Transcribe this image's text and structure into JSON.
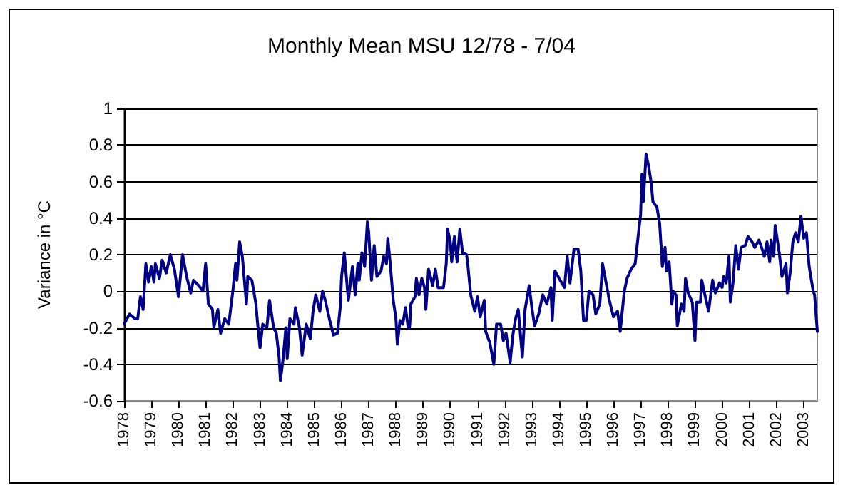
{
  "chart_data": {
    "type": "line",
    "title": "Monthly Mean MSU 12/78 - 7/04",
    "ylabel": "Variance in °C",
    "xlim": [
      1978,
      2003.5
    ],
    "xticks": [
      1978,
      1979,
      1980,
      1981,
      1982,
      1983,
      1984,
      1985,
      1986,
      1987,
      1988,
      1989,
      1990,
      1991,
      1992,
      1993,
      1994,
      1995,
      1996,
      1997,
      1998,
      1999,
      2000,
      2001,
      2002,
      2003
    ],
    "ylim": [
      -0.6,
      1
    ],
    "yticks": [
      -0.6,
      -0.4,
      -0.2,
      0,
      0.2,
      0.4,
      0.6,
      0.8,
      1
    ],
    "grid": "y",
    "marker": "none",
    "line_style": "solid",
    "series": [
      {
        "color": "#000080",
        "x": [
          1978.0,
          1978.2,
          1978.4,
          1978.5,
          1978.6,
          1978.7,
          1978.8,
          1978.9,
          1979.0,
          1979.1,
          1979.15,
          1979.3,
          1979.4,
          1979.55,
          1979.7,
          1979.85,
          1980.0,
          1980.15,
          1980.3,
          1980.45,
          1980.55,
          1980.75,
          1980.9,
          1981.0,
          1981.1,
          1981.25,
          1981.3,
          1981.45,
          1981.55,
          1981.7,
          1981.85,
          1982.0,
          1982.1,
          1982.15,
          1982.25,
          1982.35,
          1982.5,
          1982.55,
          1982.7,
          1982.85,
          1982.9,
          1983.0,
          1983.1,
          1983.25,
          1983.35,
          1983.5,
          1983.6,
          1983.7,
          1983.75,
          1983.85,
          1983.95,
          1984.0,
          1984.1,
          1984.25,
          1984.3,
          1984.45,
          1984.55,
          1984.7,
          1984.85,
          1984.95,
          1985.05,
          1985.2,
          1985.3,
          1985.4,
          1985.55,
          1985.7,
          1985.85,
          1985.95,
          1986.0,
          1986.1,
          1986.25,
          1986.4,
          1986.5,
          1986.6,
          1986.65,
          1986.75,
          1986.85,
          1986.95,
          1987.0,
          1987.1,
          1987.2,
          1987.3,
          1987.45,
          1987.55,
          1987.65,
          1987.7,
          1987.8,
          1987.9,
          1988.0,
          1988.05,
          1988.15,
          1988.25,
          1988.35,
          1988.45,
          1988.5,
          1988.55,
          1988.7,
          1988.75,
          1988.85,
          1988.95,
          1989.05,
          1989.1,
          1989.2,
          1989.35,
          1989.45,
          1989.55,
          1989.75,
          1989.85,
          1989.9,
          1990.0,
          1990.05,
          1990.15,
          1990.25,
          1990.35,
          1990.45,
          1990.6,
          1990.65,
          1990.75,
          1990.9,
          1991.0,
          1991.1,
          1991.25,
          1991.3,
          1991.45,
          1991.6,
          1991.7,
          1991.85,
          1991.95,
          1992.05,
          1992.2,
          1992.3,
          1992.4,
          1992.5,
          1992.65,
          1992.75,
          1992.9,
          1993.0,
          1993.1,
          1993.25,
          1993.4,
          1993.55,
          1993.7,
          1993.75,
          1993.85,
          1994.0,
          1994.2,
          1994.3,
          1994.4,
          1994.55,
          1994.7,
          1994.8,
          1994.9,
          1995.0,
          1995.1,
          1995.25,
          1995.35,
          1995.5,
          1995.6,
          1995.7,
          1995.85,
          1996.0,
          1996.15,
          1996.25,
          1996.4,
          1996.5,
          1996.65,
          1996.8,
          1996.9,
          1997.0,
          1997.05,
          1997.1,
          1997.2,
          1997.3,
          1997.4,
          1997.45,
          1997.6,
          1997.7,
          1997.8,
          1997.9,
          1997.95,
          1998.05,
          1998.15,
          1998.2,
          1998.3,
          1998.35,
          1998.5,
          1998.6,
          1998.65,
          1998.75,
          1998.9,
          1999.0,
          1999.05,
          1999.2,
          1999.25,
          1999.35,
          1999.5,
          1999.65,
          1999.75,
          1999.9,
          2000.0,
          2000.05,
          2000.15,
          2000.25,
          2000.3,
          2000.4,
          2000.5,
          2000.6,
          2000.7,
          2000.85,
          2000.95,
          2001.1,
          2001.2,
          2001.35,
          2001.45,
          2001.55,
          2001.65,
          2001.75,
          2001.8,
          2001.9,
          2001.95,
          2002.1,
          2002.2,
          2002.35,
          2002.4,
          2002.5,
          2002.6,
          2002.7,
          2002.8,
          2002.9,
          2003.0,
          2003.1,
          2003.2,
          2003.35,
          2003.4,
          2003.5
        ],
        "values": [
          -0.18,
          -0.125,
          -0.15,
          -0.15,
          -0.03,
          -0.1,
          0.15,
          0.05,
          0.135,
          0.05,
          0.15,
          0.07,
          0.17,
          0.1,
          0.2,
          0.12,
          -0.03,
          0.2,
          0.08,
          -0.01,
          0.06,
          0.03,
          0.0,
          0.15,
          -0.07,
          -0.1,
          -0.2,
          -0.1,
          -0.23,
          -0.15,
          -0.18,
          0.0,
          0.15,
          0.06,
          0.27,
          0.19,
          -0.07,
          0.08,
          0.06,
          -0.07,
          -0.16,
          -0.31,
          -0.18,
          -0.2,
          -0.05,
          -0.2,
          -0.23,
          -0.36,
          -0.49,
          -0.37,
          -0.2,
          -0.37,
          -0.15,
          -0.18,
          -0.09,
          -0.2,
          -0.35,
          -0.18,
          -0.26,
          -0.11,
          -0.02,
          -0.11,
          0.0,
          -0.05,
          -0.15,
          -0.24,
          -0.23,
          -0.09,
          0.08,
          0.21,
          -0.05,
          0.135,
          -0.02,
          0.15,
          0.06,
          0.21,
          0.135,
          0.38,
          0.32,
          0.06,
          0.25,
          0.08,
          0.11,
          0.19,
          0.15,
          0.29,
          0.135,
          -0.05,
          -0.15,
          -0.29,
          -0.16,
          -0.18,
          -0.09,
          -0.2,
          -0.2,
          -0.07,
          -0.03,
          0.07,
          -0.02,
          0.07,
          0.02,
          -0.1,
          0.12,
          0.03,
          0.12,
          0.02,
          0.02,
          0.15,
          0.34,
          0.27,
          0.16,
          0.3,
          0.16,
          0.34,
          0.21,
          0.2,
          0.135,
          -0.02,
          -0.11,
          -0.03,
          -0.14,
          -0.05,
          -0.22,
          -0.28,
          -0.4,
          -0.18,
          -0.18,
          -0.27,
          -0.23,
          -0.39,
          -0.24,
          -0.15,
          -0.1,
          -0.36,
          -0.1,
          0.03,
          -0.09,
          -0.19,
          -0.125,
          -0.02,
          -0.07,
          0.02,
          -0.16,
          0.11,
          0.07,
          0.02,
          0.19,
          0.045,
          0.23,
          0.23,
          0.11,
          -0.16,
          -0.16,
          0.0,
          -0.02,
          -0.125,
          -0.07,
          0.15,
          0.07,
          -0.05,
          -0.14,
          -0.11,
          -0.22,
          0.0,
          0.07,
          0.12,
          0.15,
          0.29,
          0.42,
          0.64,
          0.49,
          0.75,
          0.68,
          0.58,
          0.49,
          0.46,
          0.37,
          0.135,
          0.24,
          0.11,
          0.16,
          -0.07,
          0.0,
          -0.02,
          -0.19,
          -0.07,
          -0.11,
          0.07,
          -0.01,
          -0.06,
          -0.27,
          -0.06,
          -0.06,
          0.06,
          -0.01,
          -0.11,
          0.06,
          -0.01,
          0.045,
          0.02,
          0.08,
          0.045,
          0.19,
          -0.06,
          0.045,
          0.25,
          0.12,
          0.24,
          0.25,
          0.3,
          0.27,
          0.24,
          0.28,
          0.24,
          0.19,
          0.27,
          0.16,
          0.28,
          0.19,
          0.36,
          0.21,
          0.08,
          0.15,
          -0.01,
          0.1,
          0.27,
          0.32,
          0.27,
          0.41,
          0.29,
          0.32,
          0.135,
          0.0,
          -0.02,
          -0.22
        ]
      }
    ]
  }
}
